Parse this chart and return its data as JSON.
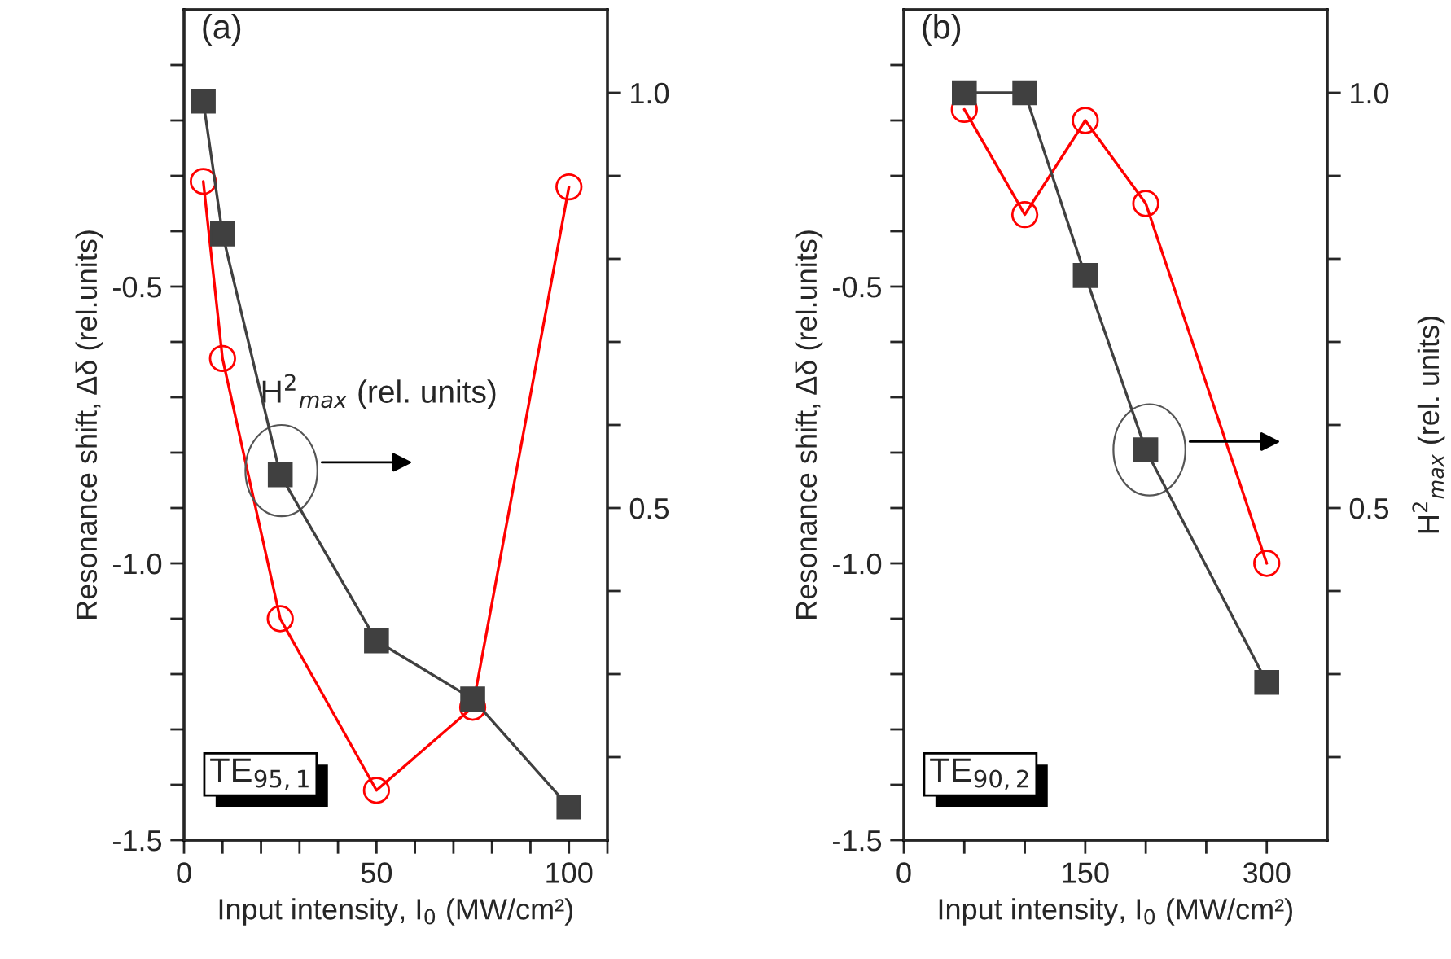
{
  "chart_data": [
    {
      "type": "line",
      "xlabel": "Input intensity, I$_{0}$ (MW/cm²)",
      "ylabel": "Resonance shift, Δδ (rel.units)",
      "annotations": [
        "(a)",
        "TE$_{95,1}$",
        "H$^{2}$$_{max}$ (rel. units)"
      ],
      "series": [
        {
          "color": "#ff0000",
          "marker": "circle",
          "x": [
            5,
            10,
            25,
            50,
            75,
            100
          ],
          "values": [
            -0.31,
            -0.63,
            -1.1,
            -1.41,
            -1.26,
            -0.32
          ]
        },
        {
          "color": "#404040",
          "marker": "square",
          "axis": "y2",
          "x": [
            5,
            10,
            25,
            50,
            75,
            100
          ],
          "values": [
            0.99,
            0.83,
            0.54,
            0.34,
            0.27,
            0.14
          ]
        }
      ],
      "xlim": [
        0,
        110
      ],
      "xticks": [
        {
          "value": 0,
          "label": "0"
        },
        {
          "value": 10,
          "label": null
        },
        {
          "value": 20,
          "label": null
        },
        {
          "value": 30,
          "label": null
        },
        {
          "value": 40,
          "label": null
        },
        {
          "value": 50,
          "label": "50"
        },
        {
          "value": 60,
          "label": null
        },
        {
          "value": 70,
          "label": null
        },
        {
          "value": 80,
          "label": null
        },
        {
          "value": 90,
          "label": null
        },
        {
          "value": 100,
          "label": "100"
        },
        {
          "value": 110,
          "label": null
        }
      ],
      "ylim": [
        -1.5,
        0
      ],
      "yticks": [
        {
          "value": -1.5,
          "label": "-1.5"
        },
        {
          "value": -1.4,
          "label": null
        },
        {
          "value": -1.3,
          "label": null
        },
        {
          "value": -1.2,
          "label": null
        },
        {
          "value": -1.1,
          "label": null
        },
        {
          "value": -1,
          "label": "-1.0"
        },
        {
          "value": -0.9,
          "label": null
        },
        {
          "value": -0.8,
          "label": null
        },
        {
          "value": -0.7,
          "label": null
        },
        {
          "value": -0.6,
          "label": null
        },
        {
          "value": -0.5,
          "label": "-0.5"
        },
        {
          "value": -0.4,
          "label": null
        },
        {
          "value": -0.3,
          "label": null
        },
        {
          "value": -0.2,
          "label": null
        },
        {
          "value": -0.1,
          "label": null
        }
      ],
      "y2lim": [
        0.1,
        1.1
      ],
      "y2ticks": [
        {
          "value": 0.2,
          "label": null
        },
        {
          "value": 0.3,
          "label": null
        },
        {
          "value": 0.4,
          "label": null
        },
        {
          "value": 0.5,
          "label": "0.5"
        },
        {
          "value": 0.6,
          "label": null
        },
        {
          "value": 0.7,
          "label": null
        },
        {
          "value": 0.8,
          "label": null
        },
        {
          "value": 0.9,
          "label": null
        },
        {
          "value": 1,
          "label": "1.0"
        }
      ],
      "line_style": "solid",
      "grid": false,
      "legend": false
    },
    {
      "type": "line",
      "xlabel": "Input intensity, I$_{0}$ (MW/cm²)",
      "ylabel": "Resonance shift, Δδ (rel.units)",
      "y2label": "H$^{2}$$_{max}$ (rel. units)",
      "annotations": [
        "(b)",
        "TE$_{90,2}$"
      ],
      "series": [
        {
          "color": "#ff0000",
          "marker": "circle",
          "x": [
            50,
            100,
            150,
            200,
            300
          ],
          "values": [
            -0.18,
            -0.37,
            -0.2,
            -0.35,
            -1.0
          ]
        },
        {
          "color": "#404040",
          "marker": "square",
          "axis": "y2",
          "x": [
            50,
            100,
            150,
            200,
            300
          ],
          "values": [
            1.0,
            1.0,
            0.78,
            0.57,
            0.29
          ]
        }
      ],
      "xlim": [
        0,
        350
      ],
      "xticks": [
        {
          "value": 0,
          "label": "0"
        },
        {
          "value": 50,
          "label": null
        },
        {
          "value": 100,
          "label": null
        },
        {
          "value": 150,
          "label": "150"
        },
        {
          "value": 200,
          "label": null
        },
        {
          "value": 250,
          "label": null
        },
        {
          "value": 300,
          "label": "300"
        }
      ],
      "ylim": [
        -1.5,
        0
      ],
      "yticks": [
        {
          "value": -1.5,
          "label": "-1.5"
        },
        {
          "value": -1.4,
          "label": null
        },
        {
          "value": -1.3,
          "label": null
        },
        {
          "value": -1.2,
          "label": null
        },
        {
          "value": -1.1,
          "label": null
        },
        {
          "value": -1,
          "label": "-1.0"
        },
        {
          "value": -0.9,
          "label": null
        },
        {
          "value": -0.8,
          "label": null
        },
        {
          "value": -0.7,
          "label": null
        },
        {
          "value": -0.6,
          "label": null
        },
        {
          "value": -0.5,
          "label": "-0.5"
        },
        {
          "value": -0.4,
          "label": null
        },
        {
          "value": -0.3,
          "label": null
        },
        {
          "value": -0.2,
          "label": null
        },
        {
          "value": -0.1,
          "label": null
        }
      ],
      "y2lim": [
        0.1,
        1.1
      ],
      "y2ticks": [
        {
          "value": 0.2,
          "label": null
        },
        {
          "value": 0.3,
          "label": null
        },
        {
          "value": 0.4,
          "label": null
        },
        {
          "value": 0.5,
          "label": "0.5"
        },
        {
          "value": 0.6,
          "label": null
        },
        {
          "value": 0.7,
          "label": null
        },
        {
          "value": 0.8,
          "label": null
        },
        {
          "value": 0.9,
          "label": null
        },
        {
          "value": 1,
          "label": "1.0"
        }
      ],
      "line_style": "solid",
      "grid": false,
      "legend": false
    }
  ]
}
